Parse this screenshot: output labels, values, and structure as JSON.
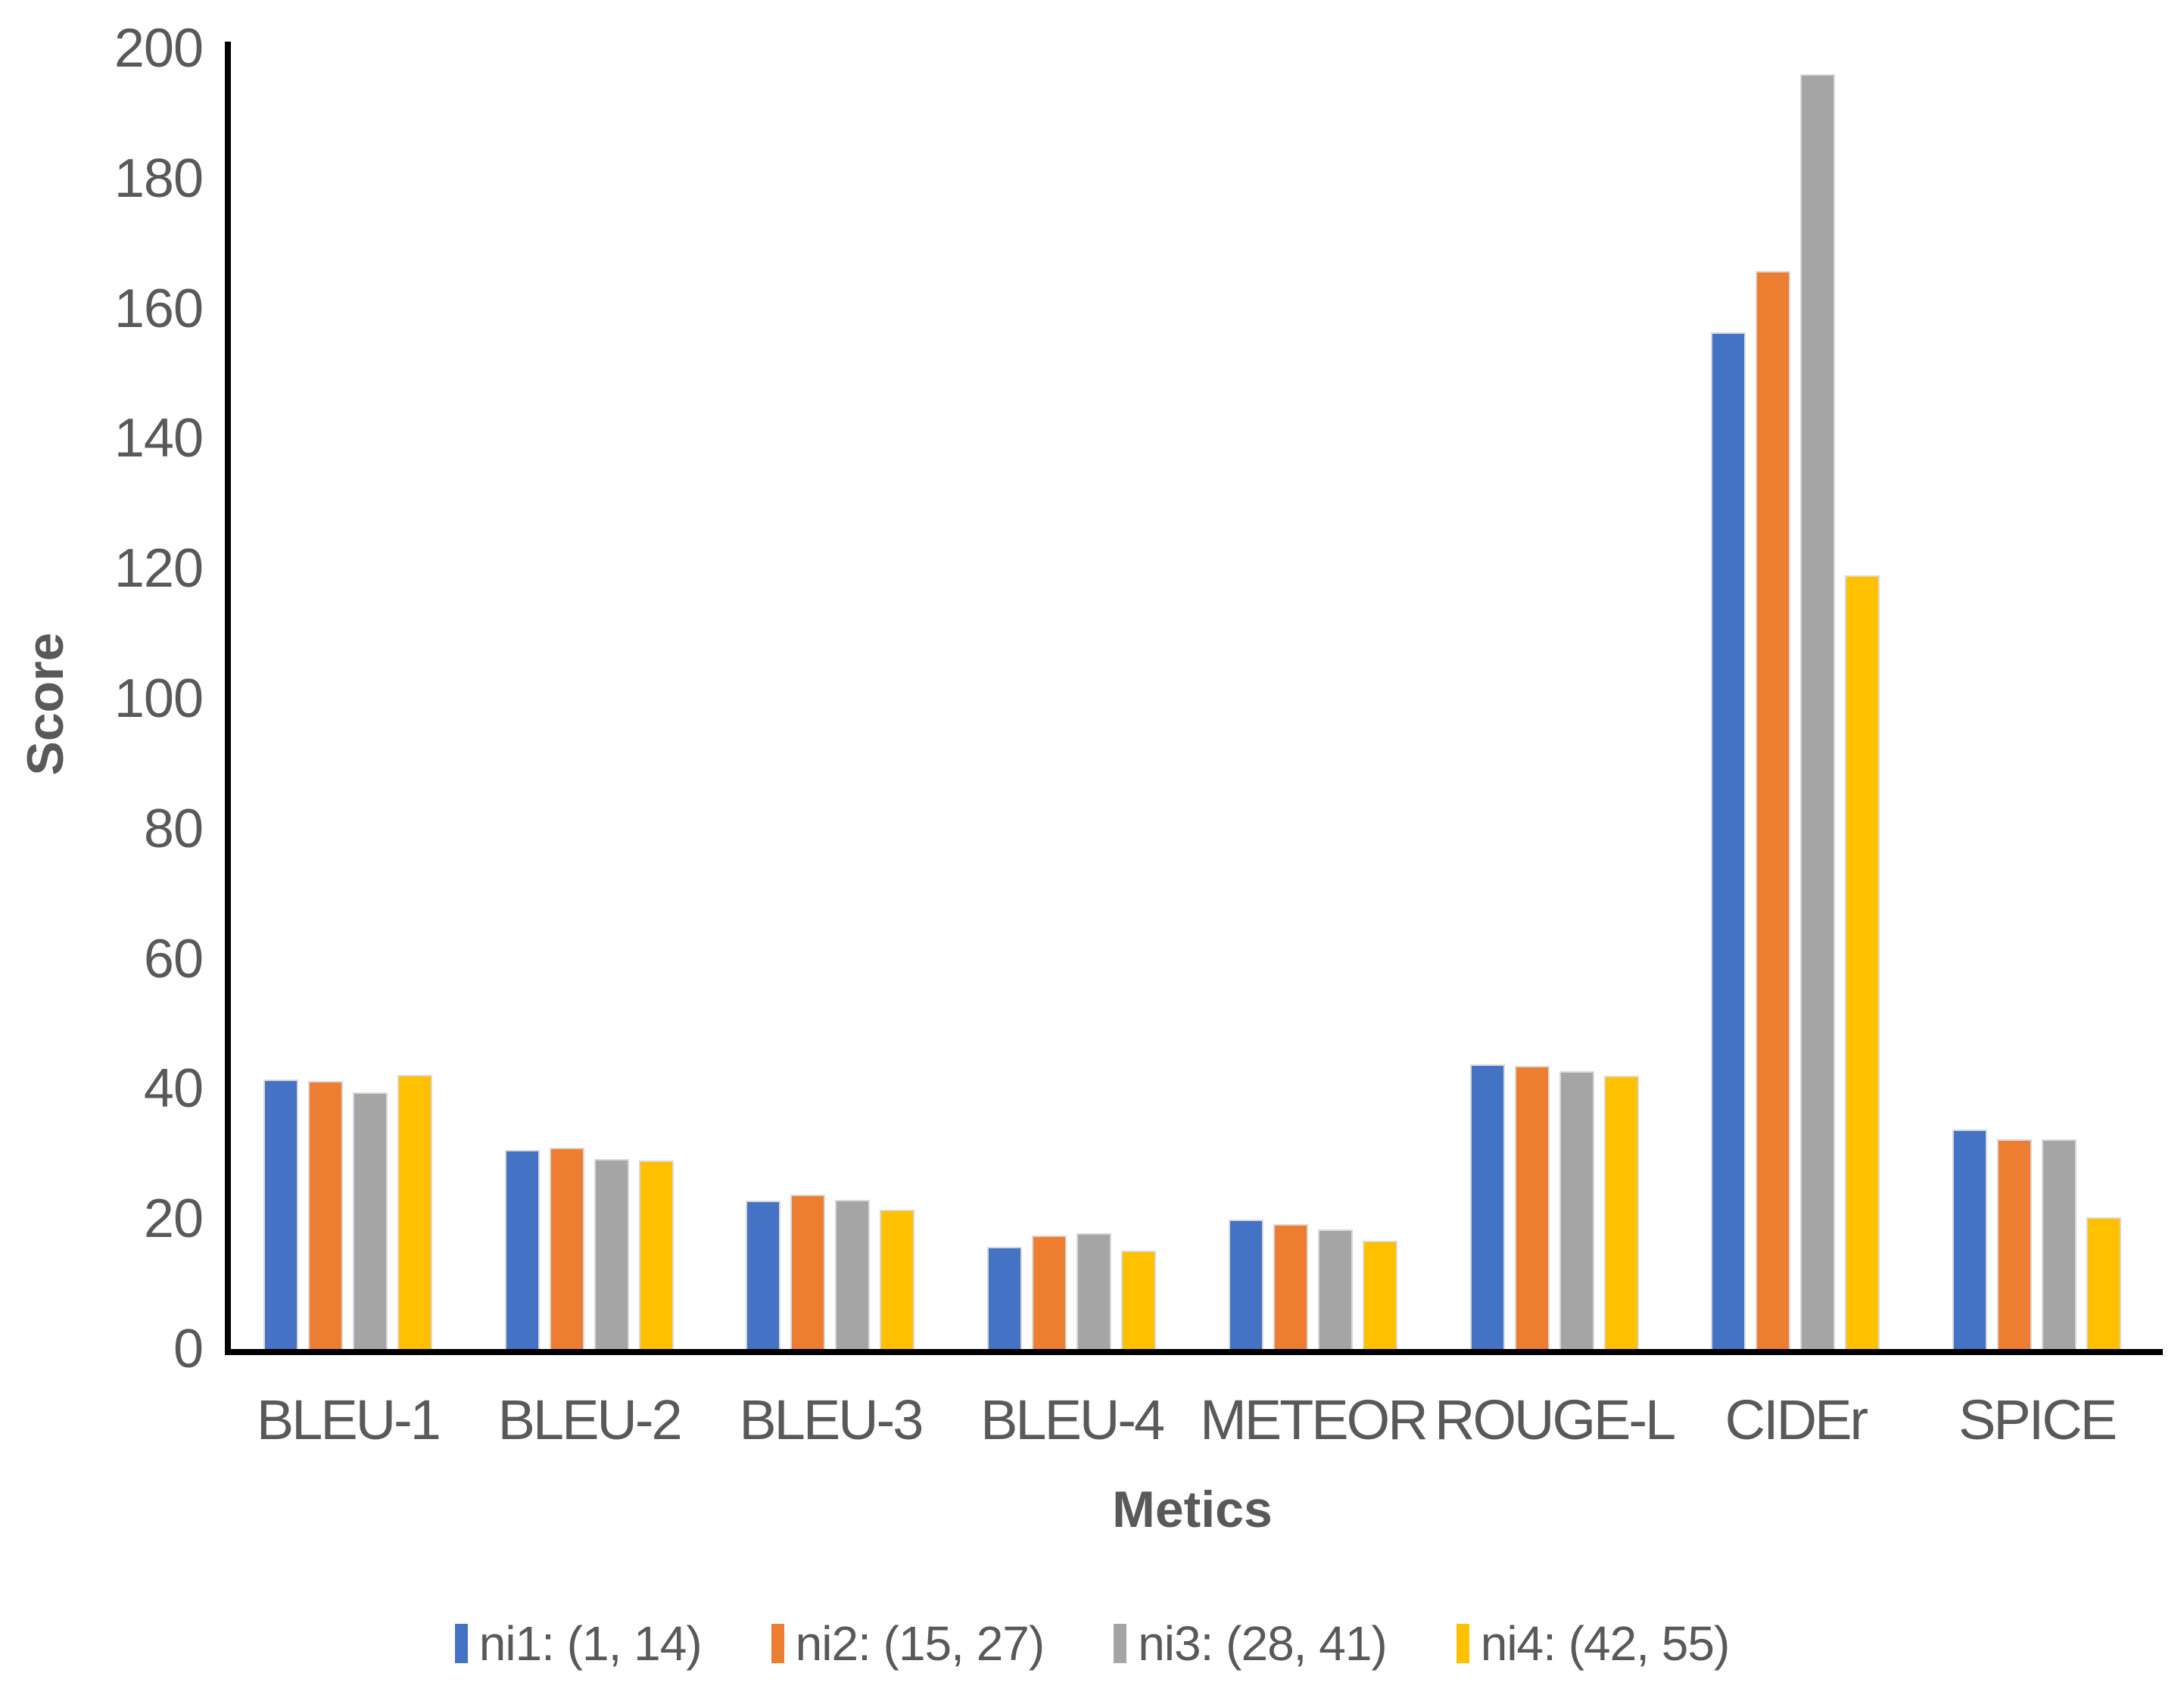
{
  "chart_data": {
    "type": "bar",
    "title": "",
    "xlabel": "Metics",
    "ylabel": "Score",
    "ylim": [
      0,
      200
    ],
    "yticks": [
      0,
      20,
      40,
      60,
      80,
      100,
      120,
      140,
      160,
      180,
      200
    ],
    "grid": false,
    "legend_position": "bottom",
    "categories": [
      "BLEU-1",
      "BLEU-2",
      "BLEU-3",
      "BLEU-4",
      "METEOR",
      "ROUGE-L",
      "CIDEr",
      "SPICE"
    ],
    "series": [
      {
        "name": "ni1: (1, 14)",
        "color": "#4472C4",
        "values": [
          41.5,
          30.6,
          22.8,
          15.7,
          19.9,
          43.8,
          156.3,
          33.8
        ]
      },
      {
        "name": "ni2: (15, 27)",
        "color": "#ED7D31",
        "values": [
          41.2,
          31.0,
          23.8,
          17.5,
          19.2,
          43.5,
          165.8,
          32.2
        ]
      },
      {
        "name": "ni3: (28, 41)",
        "color": "#A5A5A5",
        "values": [
          39.5,
          29.2,
          22.9,
          17.8,
          18.4,
          42.7,
          196.0,
          32.2
        ]
      },
      {
        "name": "ni4: (42, 55)",
        "color": "#FFC000",
        "values": [
          42.1,
          29.0,
          21.4,
          15.1,
          16.6,
          42.0,
          119.0,
          20.2
        ]
      }
    ]
  },
  "colors": {
    "text": "#595959",
    "axis": "#000000"
  }
}
